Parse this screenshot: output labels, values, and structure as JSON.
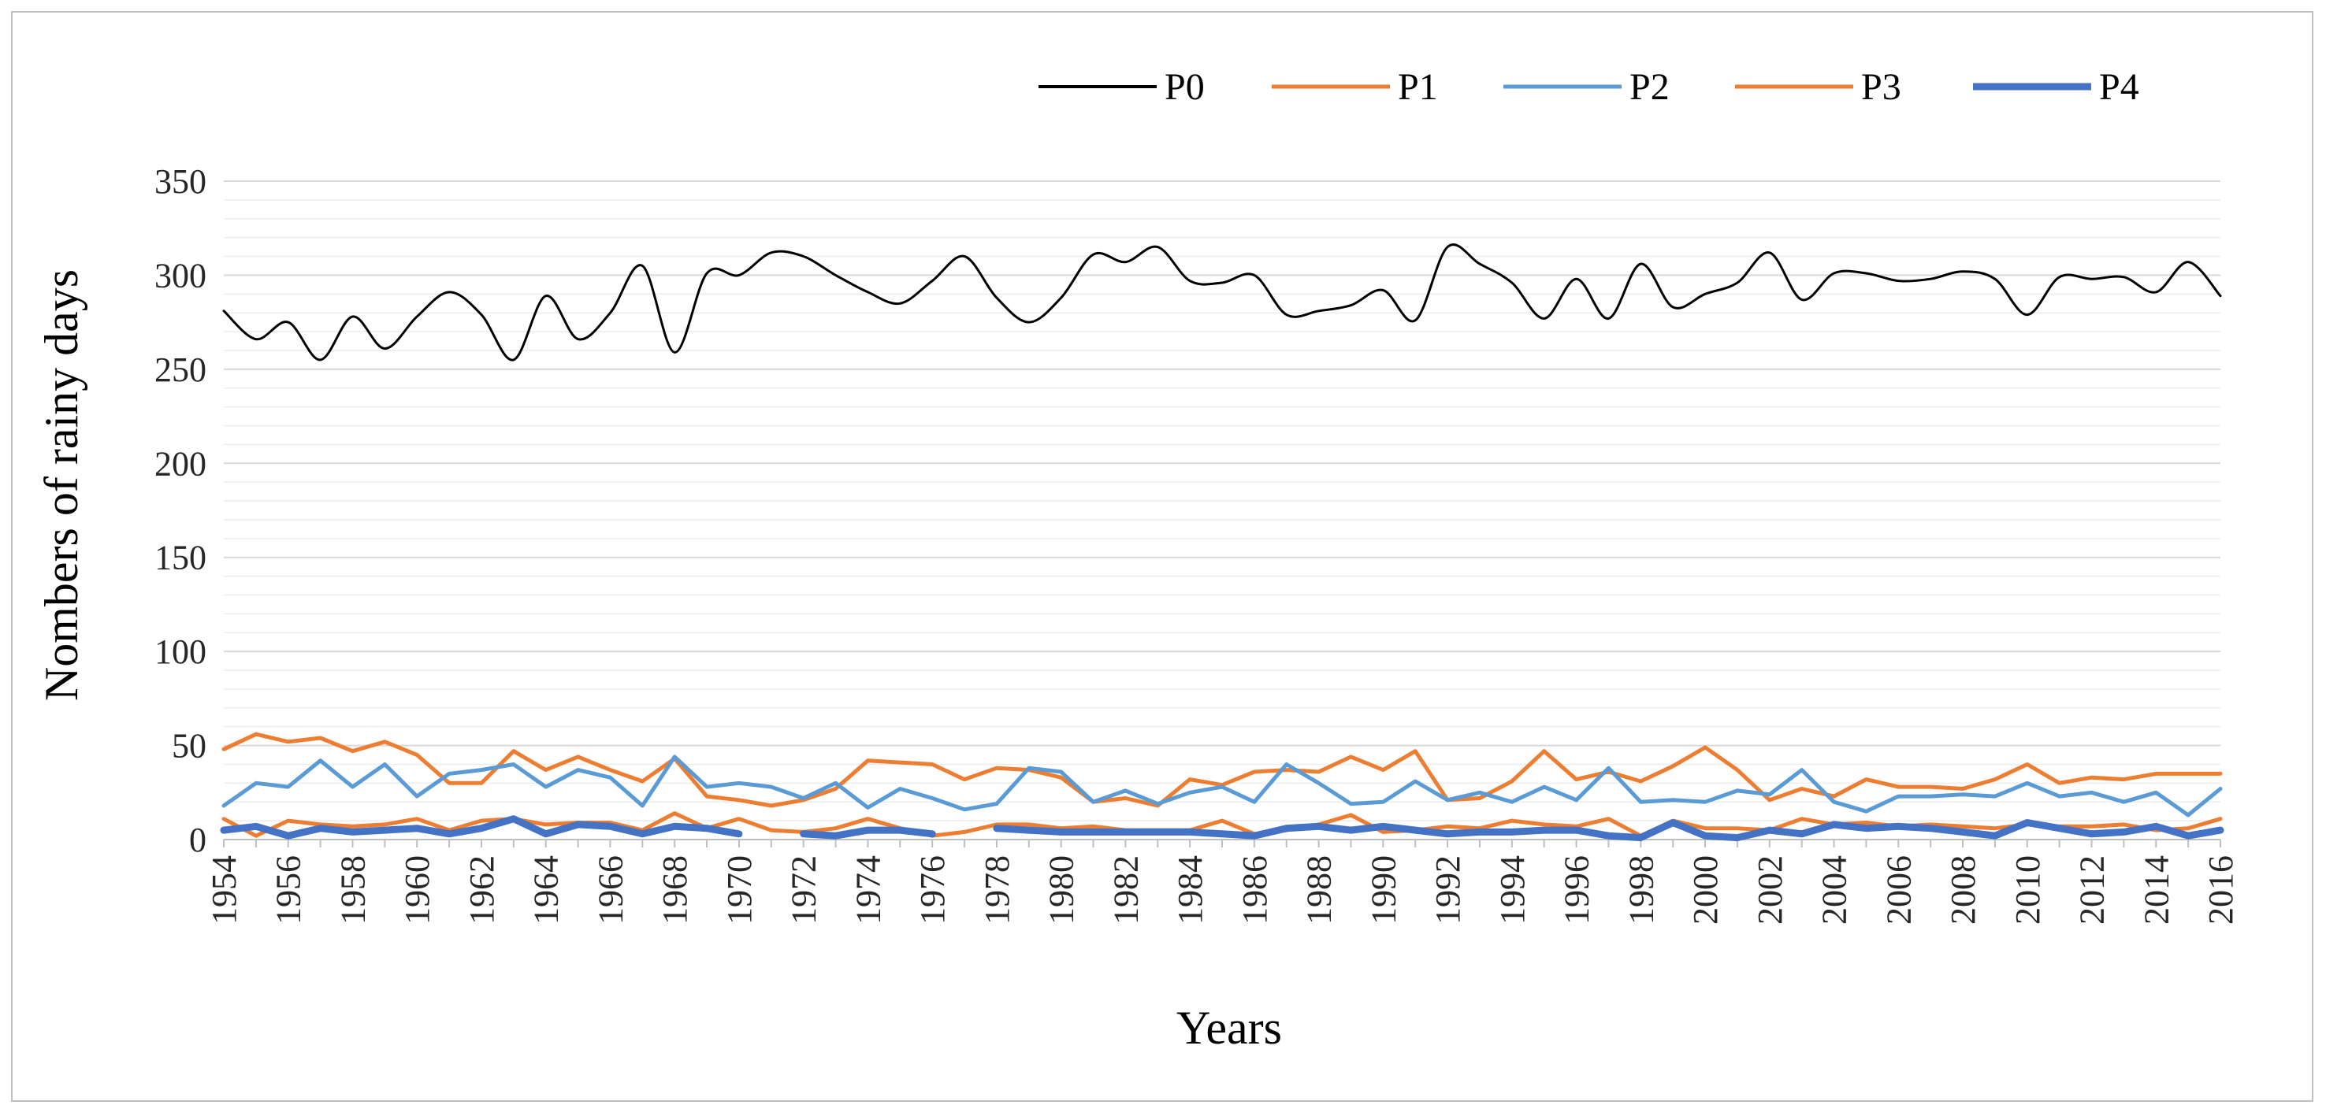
{
  "chart_data": {
    "type": "line",
    "title": "",
    "xlabel": "Years",
    "ylabel": "Nombers of rainy days",
    "ylim": [
      0,
      350
    ],
    "yticks": [
      0,
      50,
      100,
      150,
      200,
      250,
      300,
      350
    ],
    "grid": "horizontal",
    "legend_position": "top-right",
    "x": [
      1954,
      1955,
      1956,
      1957,
      1958,
      1959,
      1960,
      1961,
      1962,
      1963,
      1964,
      1965,
      1966,
      1967,
      1968,
      1969,
      1970,
      1971,
      1972,
      1973,
      1974,
      1975,
      1976,
      1977,
      1978,
      1979,
      1980,
      1981,
      1982,
      1983,
      1984,
      1985,
      1986,
      1987,
      1988,
      1989,
      1990,
      1991,
      1992,
      1993,
      1994,
      1995,
      1996,
      1997,
      1998,
      1999,
      2000,
      2001,
      2002,
      2003,
      2004,
      2005,
      2006,
      2007,
      2008,
      2009,
      2010,
      2011,
      2012,
      2013,
      2014,
      2015,
      2016
    ],
    "xtick_labels": [
      "1954",
      "1956",
      "1958",
      "1960",
      "1962",
      "1964",
      "1966",
      "1968",
      "1970",
      "1972",
      "1974",
      "1976",
      "1978",
      "1980",
      "1982",
      "1984",
      "1986",
      "1988",
      "1990",
      "1992",
      "1994",
      "1996",
      "1998",
      "2000",
      "2002",
      "2004",
      "2006",
      "2008",
      "2010",
      "2012",
      "2014",
      "2016"
    ],
    "series": [
      {
        "name": "P0",
        "color": "#000000",
        "width": 3,
        "smooth": true,
        "values": [
          281,
          266,
          275,
          255,
          278,
          261,
          278,
          291,
          279,
          255,
          289,
          266,
          280,
          305,
          259,
          301,
          300,
          312,
          310,
          300,
          291,
          285,
          297,
          310,
          288,
          275,
          288,
          311,
          307,
          315,
          297,
          296,
          300,
          279,
          281,
          284,
          292,
          276,
          315,
          306,
          296,
          277,
          298,
          277,
          306,
          283,
          290,
          296,
          312,
          287,
          301,
          301,
          297,
          298,
          302,
          298,
          279,
          299,
          298,
          299,
          291,
          307,
          289
        ]
      },
      {
        "name": "P1",
        "color": "#ed7d31",
        "width": 5,
        "smooth": false,
        "values": [
          48,
          56,
          52,
          54,
          47,
          52,
          45,
          30,
          30,
          47,
          37,
          44,
          37,
          31,
          43,
          23,
          21,
          18,
          21,
          27,
          42,
          41,
          40,
          32,
          38,
          37,
          33,
          20,
          22,
          18,
          32,
          29,
          36,
          37,
          36,
          44,
          37,
          47,
          21,
          22,
          31,
          47,
          32,
          36,
          31,
          39,
          49,
          37,
          21,
          27,
          23,
          32,
          28,
          28,
          27,
          32,
          40,
          30,
          33,
          32,
          35,
          35,
          35
        ]
      },
      {
        "name": "P2",
        "color": "#5b9bd5",
        "width": 5,
        "smooth": false,
        "values": [
          18,
          30,
          28,
          42,
          28,
          40,
          23,
          35,
          37,
          40,
          28,
          37,
          33,
          18,
          44,
          28,
          30,
          28,
          22,
          30,
          17,
          27,
          22,
          16,
          19,
          38,
          36,
          20,
          26,
          19,
          25,
          28,
          20,
          40,
          30,
          19,
          20,
          31,
          21,
          25,
          20,
          28,
          21,
          38,
          20,
          21,
          20,
          26,
          24,
          37,
          20,
          15,
          23,
          23,
          24,
          23,
          30,
          23,
          25,
          20,
          25,
          13,
          27
        ]
      },
      {
        "name": "P3",
        "color": "#ed7d31",
        "width": 5,
        "smooth": false,
        "values": [
          11,
          2,
          10,
          8,
          7,
          8,
          11,
          5,
          10,
          11,
          8,
          9,
          9,
          5,
          14,
          6,
          11,
          5,
          4,
          6,
          11,
          6,
          2,
          4,
          8,
          8,
          6,
          7,
          5,
          5,
          5,
          10,
          3,
          5,
          8,
          13,
          4,
          5,
          7,
          6,
          10,
          8,
          7,
          11,
          2,
          10,
          6,
          6,
          5,
          11,
          8,
          9,
          7,
          8,
          7,
          6,
          8,
          7,
          7,
          8,
          5,
          6,
          11
        ]
      },
      {
        "name": "P4",
        "color": "#4472c4",
        "width": 9,
        "smooth": false,
        "values": [
          5,
          7,
          2,
          6,
          4,
          5,
          6,
          3,
          6,
          11,
          3,
          8,
          7,
          3,
          7,
          6,
          3,
          null,
          3,
          2,
          5,
          5,
          3,
          null,
          6,
          5,
          4,
          4,
          4,
          4,
          4,
          3,
          2,
          6,
          7,
          5,
          7,
          5,
          3,
          4,
          4,
          5,
          5,
          2,
          1,
          9,
          2,
          1,
          5,
          3,
          8,
          6,
          7,
          6,
          4,
          2,
          9,
          6,
          3,
          4,
          7,
          2,
          5
        ]
      }
    ]
  }
}
